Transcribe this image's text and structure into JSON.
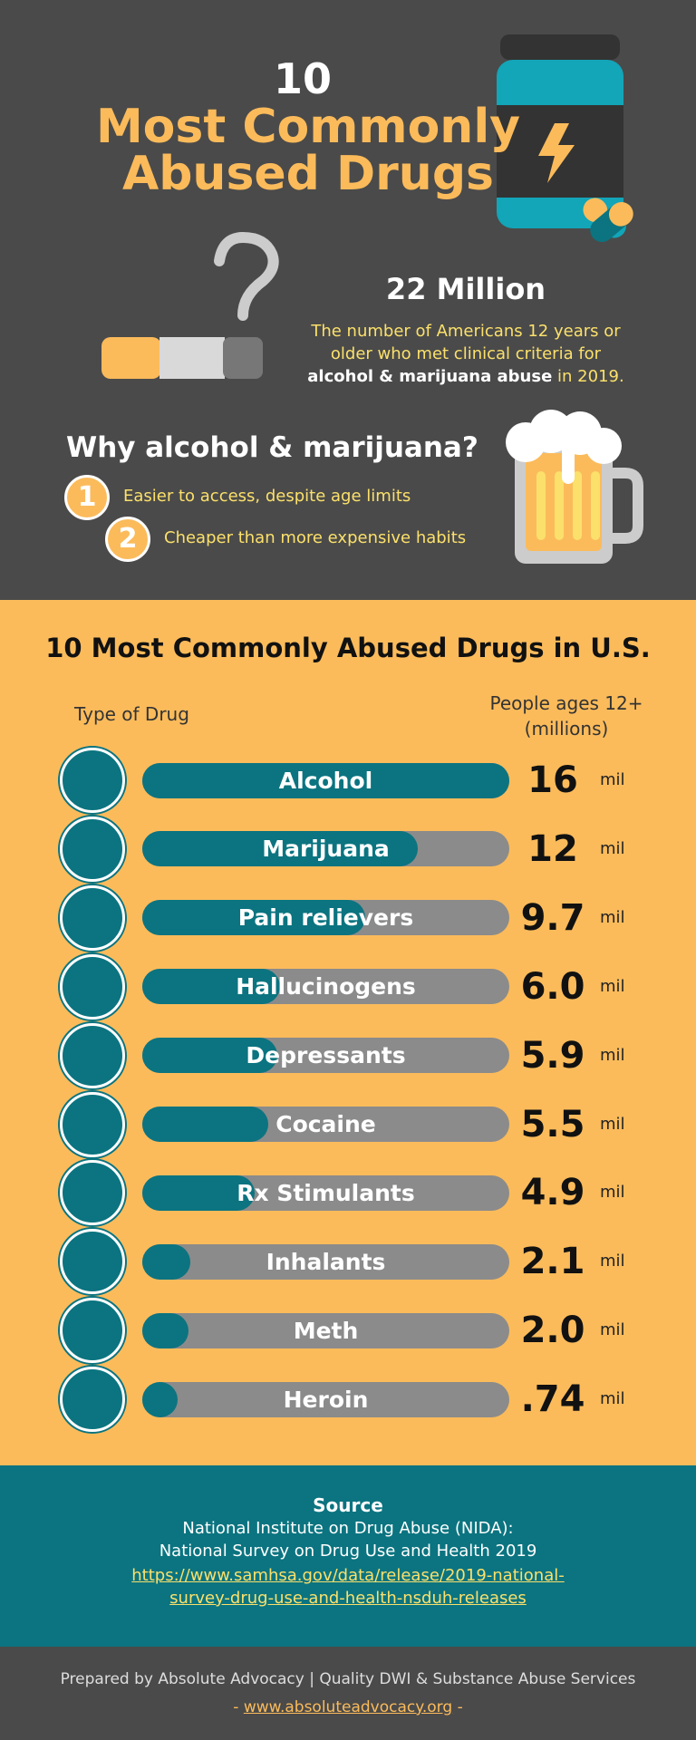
{
  "header": {
    "number": "10",
    "title_line1": "Most Commonly",
    "title_line2": "Abused Drugs"
  },
  "stats": {
    "headline": "22 Million",
    "description_1": "The number of Americans 12 years or older who met clinical criteria for",
    "description_2": "alcohol & marijuana abuse",
    "description_3": "in 2019."
  },
  "reasons": {
    "title": "Why alcohol & marijuana?",
    "items": [
      {
        "number": "1",
        "text": "Easier to access, despite age limits"
      },
      {
        "number": "2",
        "text": "Cheaper than more expensive habits"
      }
    ]
  },
  "chart_data": {
    "type": "bar",
    "title": "10 Most Commonly Abused Drugs in U.S.",
    "category_header": "Type of Drug",
    "value_header": "People ages 12+ (millions)",
    "unit": "mil",
    "categories": [
      "Alcohol",
      "Marijuana",
      "Pain relievers",
      "Hallucinogens",
      "Depressants",
      "Cocaine",
      "Rx Stimulants",
      "Inhalants",
      "Meth",
      "Heroin"
    ],
    "values": [
      16,
      12,
      9.7,
      6.0,
      5.9,
      5.5,
      4.9,
      2.1,
      2.0,
      0.74
    ],
    "value_labels": [
      "16",
      "12",
      "9.7",
      "6.0",
      "5.9",
      "5.5",
      "4.9",
      "2.1",
      "2.0",
      ".74"
    ],
    "color": "#0b7480",
    "track_color": "#8b8b8b"
  },
  "source": {
    "title": "Source",
    "line1": "National Institute on Drug Abuse (NIDA):",
    "line2": "National Survey on Drug Use and Health 2019",
    "url": "https://www.samhsa.gov/data/release/2019-national-survey-drug-use-and-health-nsduh-releases"
  },
  "footer": {
    "text": "Prepared by Absolute Advocacy | Quality DWI & Substance Abuse Services",
    "dash": "-",
    "link": "www.absoluteadvocacy.org"
  }
}
